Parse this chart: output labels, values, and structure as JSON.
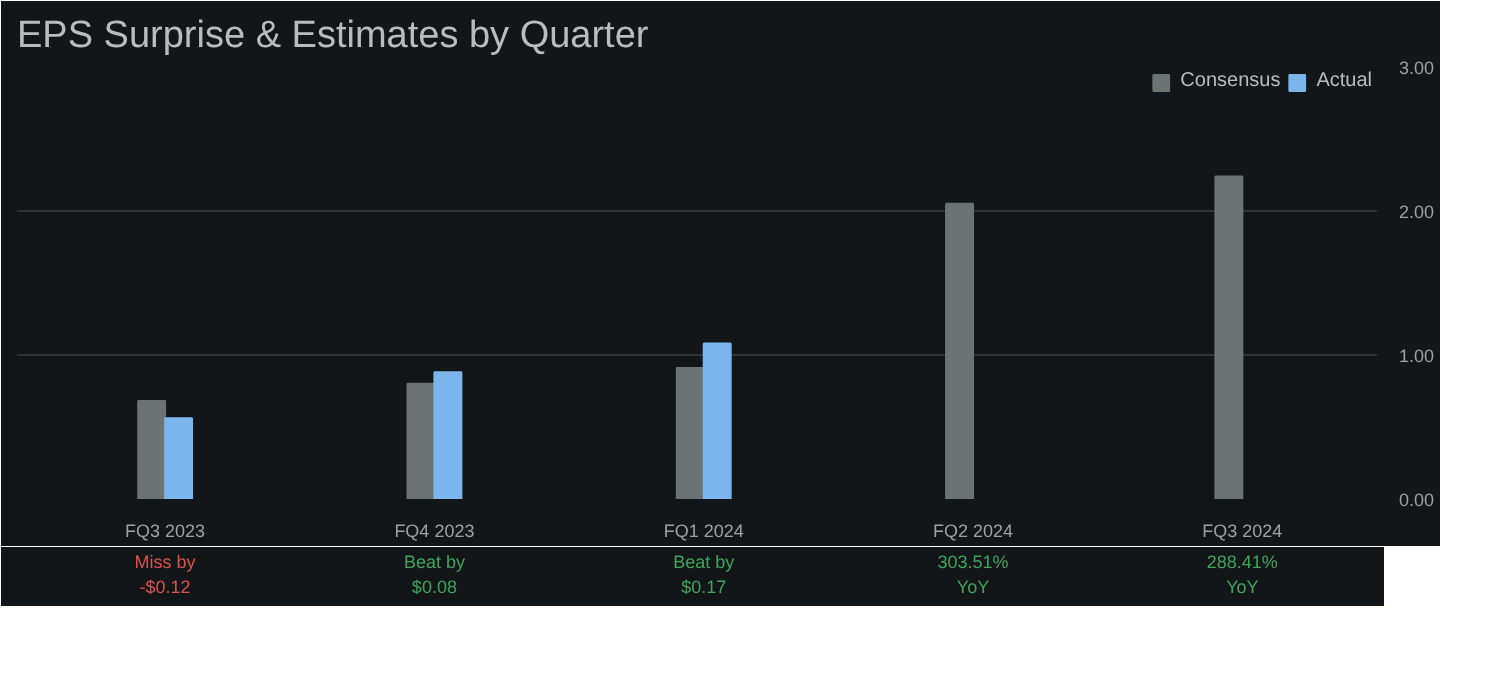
{
  "chart_data": {
    "type": "bar",
    "title": "EPS Surprise & Estimates by Quarter",
    "categories": [
      "FQ3 2023",
      "FQ4 2023",
      "FQ1 2024",
      "FQ2 2024",
      "FQ3 2024"
    ],
    "series": [
      {
        "name": "Consensus",
        "color": "#6b7373",
        "values": [
          0.68,
          0.8,
          0.91,
          2.05,
          2.24
        ]
      },
      {
        "name": "Actual",
        "color": "#7cb5ec",
        "values": [
          0.56,
          0.88,
          1.08,
          null,
          null
        ]
      }
    ],
    "ylim": [
      0,
      3
    ],
    "yticks": [
      {
        "value": 0,
        "label": "0.00"
      },
      {
        "value": 1,
        "label": "1.00"
      },
      {
        "value": 2,
        "label": "2.00"
      },
      {
        "value": 3,
        "label": "3.00"
      }
    ],
    "grid": "y",
    "legend": "top right",
    "annotations": [
      "Miss by\n-$0.12",
      "Beat by\n$0.08",
      "Beat by\n$0.17",
      "303.51%\nYoY",
      "288.41%\nYoY"
    ]
  }
}
